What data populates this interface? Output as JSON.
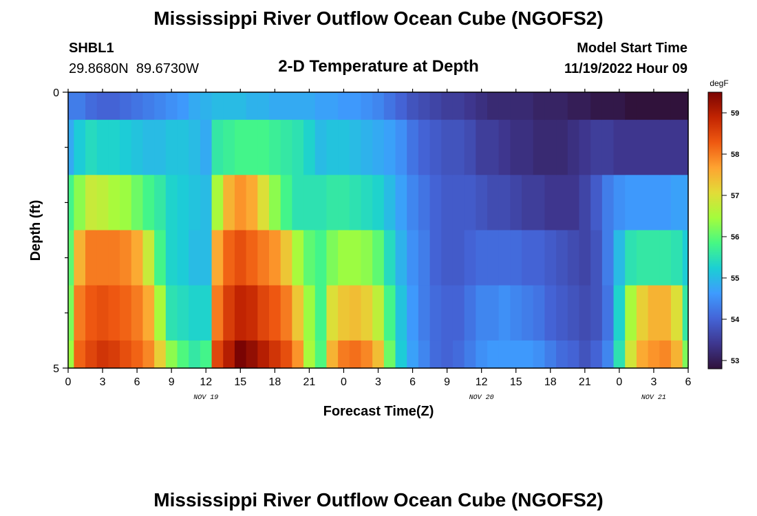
{
  "page": {
    "title": "Mississippi River Outflow Ocean Cube (NGOFS2)",
    "footer_title": "Mississippi River Outflow Ocean Cube (NGOFS2)"
  },
  "station": {
    "id": "SHBL1",
    "coords": "29.8680N  89.6730W"
  },
  "model_start": {
    "label": "Model Start Time",
    "value": "11/19/2022 Hour 09"
  },
  "chart_data": {
    "type": "heatmap",
    "title": "2-D Temperature at Depth",
    "xlabel": "Forecast Time(Z)",
    "ylabel": "Depth (ft)",
    "x_tick_labels": [
      "0",
      "3",
      "6",
      "9",
      "12",
      "15",
      "18",
      "21",
      "0",
      "3",
      "6",
      "9",
      "12",
      "15",
      "18",
      "21",
      "0",
      "3",
      "6"
    ],
    "x_range_hours": [
      0,
      54
    ],
    "date_labels": [
      {
        "text": "NOV 19",
        "hour": 12
      },
      {
        "text": "NOV 20",
        "hour": 36
      },
      {
        "text": "NOV 21",
        "hour": 51
      }
    ],
    "y_tick_labels": [
      "0",
      "5"
    ],
    "y_range": [
      0,
      5
    ],
    "depth_levels": [
      0.25,
      1.25,
      2.25,
      3.25,
      4.25,
      4.75
    ],
    "level_edges": [
      0,
      0.5,
      1.5,
      2.5,
      3.5,
      4.5,
      5
    ],
    "colorbar": {
      "unit": "degF",
      "range": [
        52.8,
        59.5
      ],
      "tick_labels": [
        "53",
        "54",
        "55",
        "56",
        "57",
        "58",
        "59"
      ],
      "colors": [
        "#30123b",
        "#3e378f",
        "#4464d7",
        "#3e9bfe",
        "#1bcfd4",
        "#46f884",
        "#a4fc3c",
        "#e2dc38",
        "#fea331",
        "#ef5911",
        "#c22402",
        "#7a0403"
      ]
    },
    "keyframes": [
      {
        "t": 0,
        "v": [
          54.3,
          54.8,
          55.8,
          56.0,
          56.2,
          56.4
        ]
      },
      {
        "t": 1,
        "v": [
          54.3,
          55.2,
          56.3,
          57.5,
          58.0,
          58.2
        ]
      },
      {
        "t": 2,
        "v": [
          54.1,
          55.4,
          56.8,
          58.0,
          58.3,
          58.5
        ]
      },
      {
        "t": 3,
        "v": [
          54.0,
          55.3,
          56.7,
          58.0,
          58.4,
          58.7
        ]
      },
      {
        "t": 4,
        "v": [
          54.0,
          55.3,
          56.5,
          58.0,
          58.3,
          58.6
        ]
      },
      {
        "t": 5,
        "v": [
          54.1,
          55.2,
          56.4,
          57.9,
          58.2,
          58.4
        ]
      },
      {
        "t": 6,
        "v": [
          54.2,
          55.1,
          56.1,
          57.6,
          58.0,
          58.2
        ]
      },
      {
        "t": 7,
        "v": [
          54.3,
          55.0,
          55.8,
          56.8,
          57.6,
          57.9
        ]
      },
      {
        "t": 8,
        "v": [
          54.4,
          55.0,
          55.6,
          55.8,
          56.5,
          57.2
        ]
      },
      {
        "t": 9,
        "v": [
          54.5,
          55.1,
          55.3,
          55.3,
          55.5,
          56.3
        ]
      },
      {
        "t": 10,
        "v": [
          54.6,
          55.1,
          55.2,
          55.2,
          55.4,
          55.9
        ]
      },
      {
        "t": 11,
        "v": [
          54.8,
          55.0,
          55.1,
          55.0,
          55.3,
          55.6
        ]
      },
      {
        "t": 12,
        "v": [
          54.9,
          54.8,
          55.0,
          55.0,
          55.3,
          55.8
        ]
      },
      {
        "t": 13,
        "v": [
          55.0,
          55.6,
          56.5,
          57.6,
          58.0,
          58.5
        ]
      },
      {
        "t": 14,
        "v": [
          55.0,
          55.7,
          57.5,
          58.2,
          58.6,
          59.0
        ]
      },
      {
        "t": 15,
        "v": [
          55.0,
          55.8,
          57.8,
          58.4,
          58.9,
          59.5
        ]
      },
      {
        "t": 16,
        "v": [
          54.9,
          55.8,
          57.6,
          58.2,
          58.8,
          59.3
        ]
      },
      {
        "t": 17,
        "v": [
          54.9,
          55.8,
          57.0,
          58.0,
          58.5,
          59.0
        ]
      },
      {
        "t": 18,
        "v": [
          54.8,
          55.7,
          56.3,
          57.8,
          58.3,
          58.7
        ]
      },
      {
        "t": 19,
        "v": [
          54.8,
          55.6,
          55.8,
          57.3,
          58.0,
          58.4
        ]
      },
      {
        "t": 20,
        "v": [
          54.8,
          55.5,
          55.5,
          56.5,
          57.3,
          57.8
        ]
      },
      {
        "t": 21,
        "v": [
          54.8,
          55.3,
          55.5,
          56.0,
          56.4,
          56.5
        ]
      },
      {
        "t": 22,
        "v": [
          54.7,
          55.0,
          55.5,
          55.8,
          55.8,
          55.9
        ]
      },
      {
        "t": 23,
        "v": [
          54.7,
          55.1,
          55.6,
          56.2,
          57.0,
          57.5
        ]
      },
      {
        "t": 24,
        "v": [
          54.6,
          55.1,
          55.6,
          56.4,
          57.3,
          58.0
        ]
      },
      {
        "t": 25,
        "v": [
          54.6,
          55.0,
          55.5,
          56.4,
          57.4,
          58.1
        ]
      },
      {
        "t": 26,
        "v": [
          54.5,
          54.9,
          55.4,
          56.3,
          57.2,
          57.9
        ]
      },
      {
        "t": 27,
        "v": [
          54.4,
          54.8,
          55.3,
          56.0,
          56.7,
          57.4
        ]
      },
      {
        "t": 28,
        "v": [
          54.2,
          54.7,
          55.0,
          55.4,
          55.8,
          56.1
        ]
      },
      {
        "t": 29,
        "v": [
          54.0,
          54.5,
          54.7,
          54.9,
          55.1,
          55.2
        ]
      },
      {
        "t": 30,
        "v": [
          53.8,
          54.2,
          54.4,
          54.5,
          54.6,
          54.7
        ]
      },
      {
        "t": 31,
        "v": [
          53.7,
          54.0,
          54.2,
          54.3,
          54.3,
          54.4
        ]
      },
      {
        "t": 32,
        "v": [
          53.6,
          53.9,
          54.0,
          54.0,
          54.1,
          54.1
        ]
      },
      {
        "t": 33,
        "v": [
          53.5,
          53.8,
          53.9,
          53.9,
          54.0,
          54.0
        ]
      },
      {
        "t": 34,
        "v": [
          53.5,
          53.8,
          53.9,
          53.9,
          54.0,
          54.1
        ]
      },
      {
        "t": 35,
        "v": [
          53.4,
          53.7,
          53.9,
          54.0,
          54.2,
          54.3
        ]
      },
      {
        "t": 36,
        "v": [
          53.3,
          53.5,
          53.8,
          54.1,
          54.4,
          54.5
        ]
      },
      {
        "t": 37,
        "v": [
          53.2,
          53.5,
          53.7,
          54.1,
          54.4,
          54.6
        ]
      },
      {
        "t": 38,
        "v": [
          53.2,
          53.4,
          53.7,
          54.1,
          54.5,
          54.6
        ]
      },
      {
        "t": 39,
        "v": [
          53.2,
          53.3,
          53.6,
          54.1,
          54.4,
          54.6
        ]
      },
      {
        "t": 40,
        "v": [
          53.2,
          53.3,
          53.5,
          54.0,
          54.3,
          54.6
        ]
      },
      {
        "t": 41,
        "v": [
          53.1,
          53.2,
          53.5,
          54.0,
          54.2,
          54.5
        ]
      },
      {
        "t": 42,
        "v": [
          53.1,
          53.2,
          53.4,
          53.9,
          54.0,
          54.3
        ]
      },
      {
        "t": 43,
        "v": [
          53.1,
          53.2,
          53.4,
          53.8,
          53.9,
          54.1
        ]
      },
      {
        "t": 44,
        "v": [
          53.0,
          53.3,
          53.4,
          53.7,
          53.8,
          54.0
        ]
      },
      {
        "t": 45,
        "v": [
          53.0,
          53.4,
          53.6,
          53.6,
          53.7,
          53.8
        ]
      },
      {
        "t": 46,
        "v": [
          52.9,
          53.5,
          53.9,
          53.8,
          53.8,
          54.0
        ]
      },
      {
        "t": 47,
        "v": [
          52.9,
          53.5,
          54.3,
          54.3,
          54.2,
          54.4
        ]
      },
      {
        "t": 48,
        "v": [
          52.9,
          53.4,
          54.5,
          55.0,
          55.3,
          55.5
        ]
      },
      {
        "t": 49,
        "v": [
          52.8,
          53.4,
          54.6,
          55.5,
          56.5,
          56.9
        ]
      },
      {
        "t": 50,
        "v": [
          52.8,
          53.4,
          54.6,
          55.6,
          57.2,
          57.6
        ]
      },
      {
        "t": 51,
        "v": [
          52.8,
          53.4,
          54.6,
          55.6,
          57.5,
          57.8
        ]
      },
      {
        "t": 52,
        "v": [
          52.8,
          53.4,
          54.6,
          55.6,
          57.5,
          57.9
        ]
      },
      {
        "t": 53,
        "v": [
          52.8,
          53.4,
          54.7,
          55.5,
          57.0,
          57.5
        ]
      },
      {
        "t": 54,
        "v": [
          52.8,
          53.4,
          54.7,
          55.2,
          55.6,
          56.2
        ]
      }
    ]
  }
}
